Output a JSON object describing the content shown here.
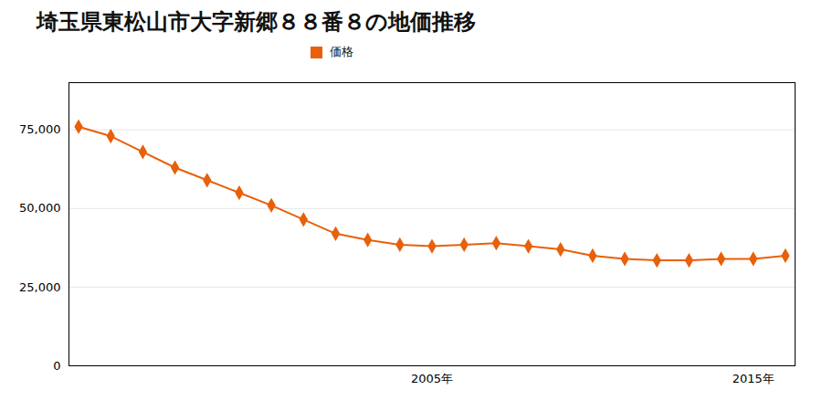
{
  "chart_data": {
    "type": "line",
    "title": "埼玉県東松山市大字新郷８８番８の地価推移",
    "x": [
      1994,
      1995,
      1996,
      1997,
      1998,
      1999,
      2000,
      2001,
      2002,
      2003,
      2004,
      2005,
      2006,
      2007,
      2008,
      2009,
      2010,
      2011,
      2012,
      2013,
      2014,
      2015,
      2016
    ],
    "series": [
      {
        "name": "価格",
        "color": "#e8600a",
        "marker": "diamond",
        "values": [
          76000,
          73000,
          68000,
          63000,
          59000,
          55000,
          51000,
          46500,
          42000,
          40000,
          38500,
          38000,
          38500,
          39000,
          38000,
          37000,
          35000,
          34000,
          33500,
          33500,
          34000,
          34000,
          35000
        ]
      }
    ],
    "xlim": [
      1993.7,
      2016.3
    ],
    "xticks": [
      {
        "value": 2005,
        "label": "2005年"
      },
      {
        "value": 2015,
        "label": "2015年"
      }
    ],
    "ylim": [
      0,
      90000
    ],
    "yticks": [
      0,
      {
        "value": 25000,
        "label": "25,000"
      },
      {
        "value": 50000,
        "label": "50,000"
      },
      {
        "value": 75000,
        "label": "75,000"
      }
    ],
    "grid": "y",
    "legend": "top"
  }
}
